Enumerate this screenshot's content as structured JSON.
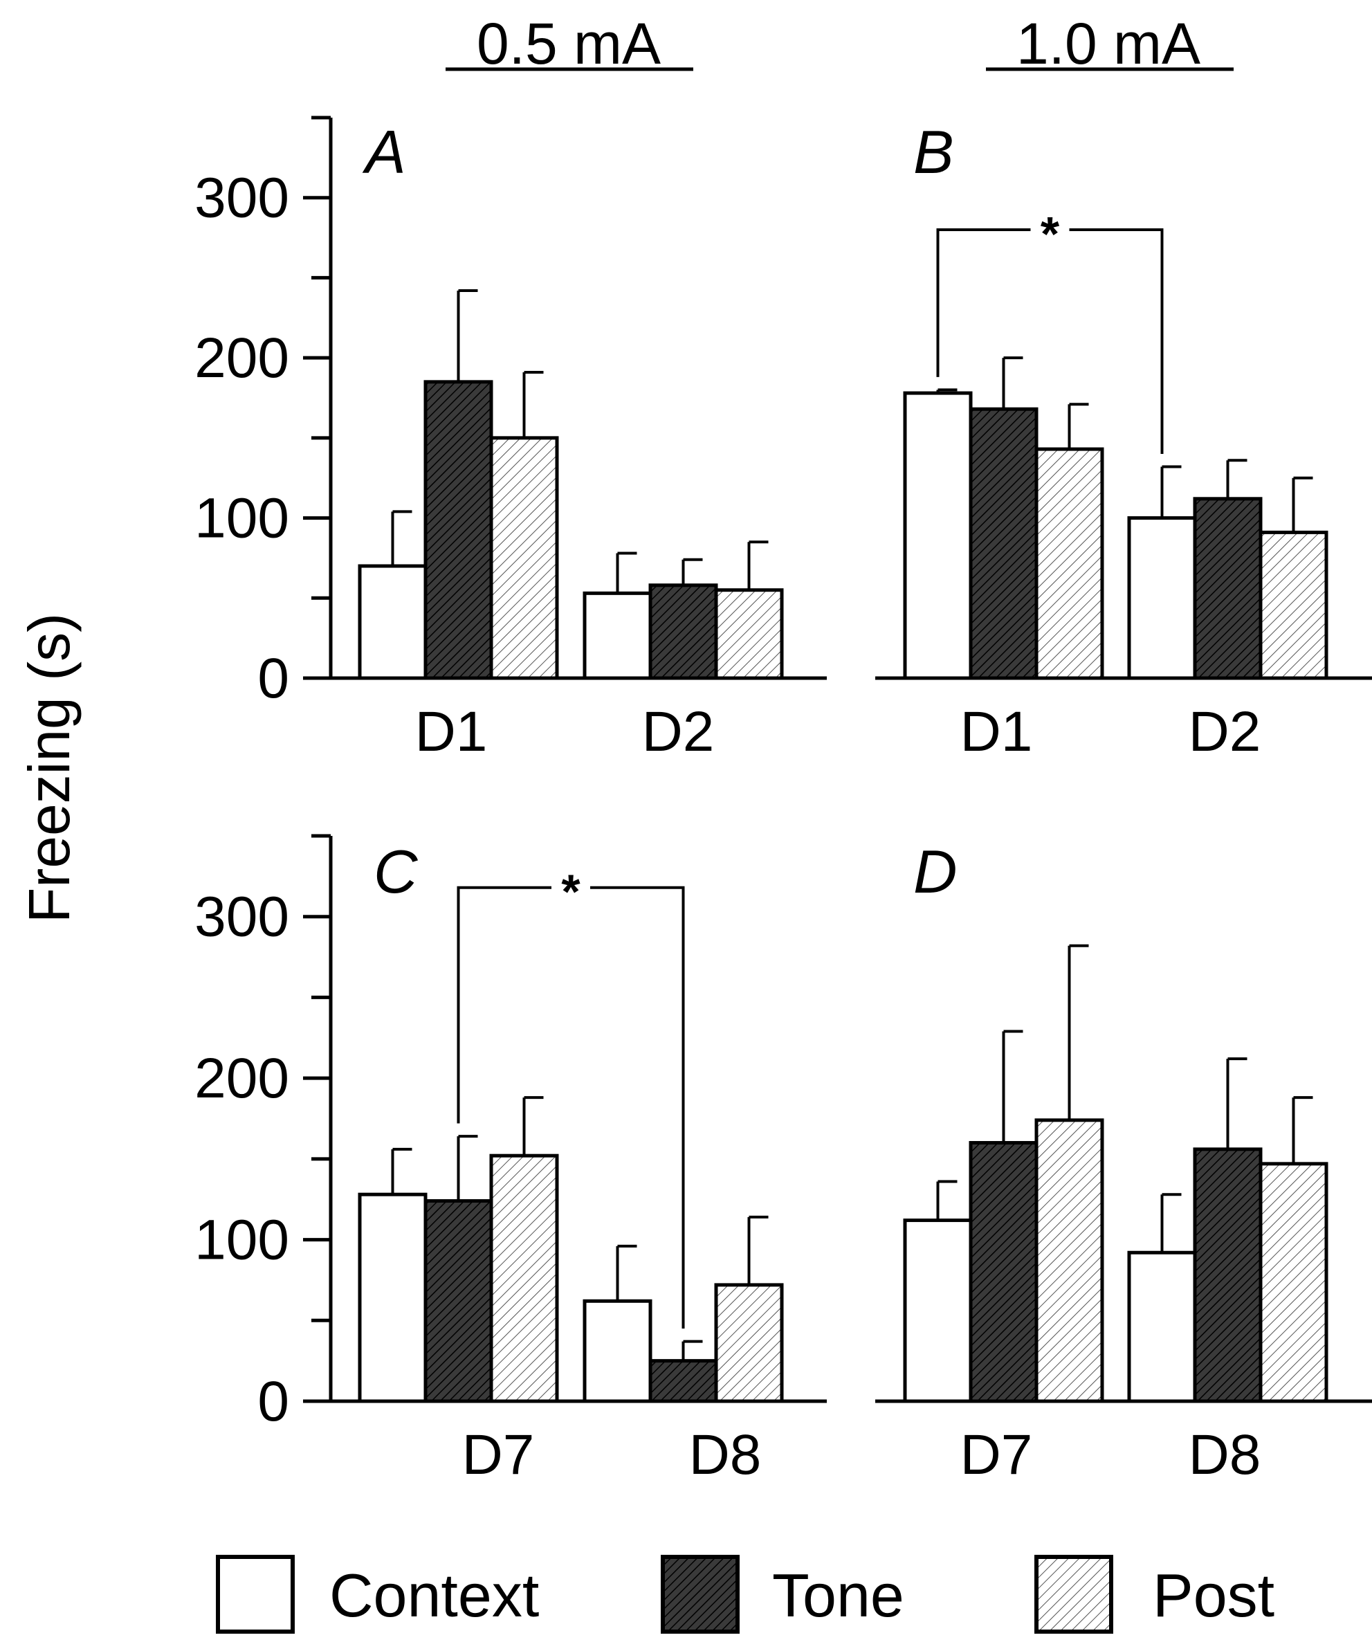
{
  "figure": {
    "y_axis_label": "Freezing (s)",
    "column_titles": [
      "0.5 mA",
      "1.0 mA"
    ]
  },
  "legend": [
    {
      "label": "Context",
      "fill": "white"
    },
    {
      "label": "Tone",
      "fill": "dark-hatch"
    },
    {
      "label": "Post",
      "fill": "light-hatch"
    }
  ],
  "colors": {
    "ink": "#000000",
    "background": "#ffffff",
    "tone": "#444444"
  },
  "chart_data": [
    {
      "panel": "A",
      "type": "bar",
      "title": "0.5 mA",
      "categories": [
        "D1",
        "D2"
      ],
      "ylim": [
        0,
        350
      ],
      "yticks": [
        0,
        100,
        200,
        300
      ],
      "series": [
        {
          "name": "Context",
          "values": [
            70,
            53
          ],
          "errors": [
            34,
            25
          ]
        },
        {
          "name": "Tone",
          "values": [
            185,
            58
          ],
          "errors": [
            57,
            16
          ]
        },
        {
          "name": "Post",
          "values": [
            150,
            55
          ],
          "errors": [
            41,
            30
          ]
        }
      ],
      "significance": []
    },
    {
      "panel": "B",
      "type": "bar",
      "title": "1.0 mA",
      "categories": [
        "D1",
        "D2"
      ],
      "ylim": [
        0,
        350
      ],
      "yticks": [
        0,
        100,
        200,
        300
      ],
      "series": [
        {
          "name": "Context",
          "values": [
            178,
            100
          ],
          "errors": [
            2,
            32
          ]
        },
        {
          "name": "Tone",
          "values": [
            168,
            112
          ],
          "errors": [
            32,
            24
          ]
        },
        {
          "name": "Post",
          "values": [
            143,
            91
          ],
          "errors": [
            28,
            34
          ]
        }
      ],
      "significance": [
        {
          "label": "*",
          "from": {
            "category": 0,
            "series": 0
          },
          "to": {
            "category": 1,
            "series": 0
          },
          "level": 280
        }
      ]
    },
    {
      "panel": "C",
      "type": "bar",
      "categories": [
        "D7",
        "D8"
      ],
      "ylim": [
        0,
        350
      ],
      "yticks": [
        0,
        100,
        200,
        300
      ],
      "series": [
        {
          "name": "Context",
          "values": [
            128,
            62
          ],
          "errors": [
            28,
            34
          ]
        },
        {
          "name": "Tone",
          "values": [
            124,
            25
          ],
          "errors": [
            40,
            12
          ]
        },
        {
          "name": "Post",
          "values": [
            152,
            72
          ],
          "errors": [
            36,
            42
          ]
        }
      ],
      "significance": [
        {
          "label": "*",
          "from": {
            "category": 0,
            "series": 1
          },
          "to": {
            "category": 1,
            "series": 1
          },
          "level": 318
        }
      ]
    },
    {
      "panel": "D",
      "type": "bar",
      "categories": [
        "D7",
        "D8"
      ],
      "ylim": [
        0,
        350
      ],
      "yticks": [
        0,
        100,
        200,
        300
      ],
      "series": [
        {
          "name": "Context",
          "values": [
            112,
            92
          ],
          "errors": [
            24,
            36
          ]
        },
        {
          "name": "Tone",
          "values": [
            160,
            156
          ],
          "errors": [
            69,
            56
          ]
        },
        {
          "name": "Post",
          "values": [
            174,
            147
          ],
          "errors": [
            108,
            41
          ]
        }
      ],
      "significance": []
    }
  ]
}
